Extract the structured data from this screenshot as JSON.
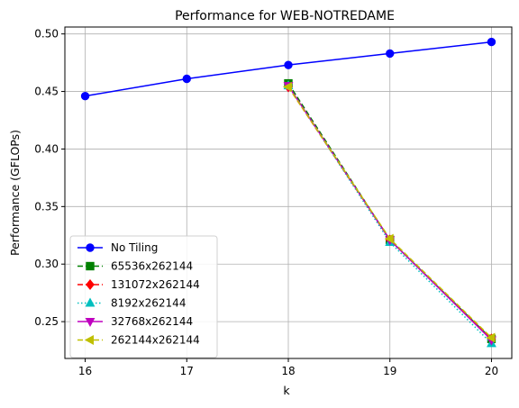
{
  "chart_data": {
    "type": "line",
    "title": "Performance for WEB-NOTREDAME",
    "xlabel": "k",
    "ylabel": "Performance (GFLOPs)",
    "xlim": [
      15.8,
      20.2
    ],
    "ylim": [
      0.218,
      0.506
    ],
    "xticks": [
      16,
      17,
      18,
      19,
      20
    ],
    "yticks": [
      0.25,
      0.3,
      0.35,
      0.4,
      0.45,
      0.5
    ],
    "ytick_labels": [
      "0.25",
      "0.30",
      "0.35",
      "0.40",
      "0.45",
      "0.50"
    ],
    "grid": true,
    "legend_placement": "lower-left",
    "series": [
      {
        "name": "No Tiling",
        "x": [
          16,
          17,
          18,
          19,
          20
        ],
        "y": [
          0.446,
          0.461,
          0.473,
          0.483,
          0.493
        ],
        "color": "#0000ff",
        "marker": "circle",
        "dash": "solid"
      },
      {
        "name": "65536x262144",
        "x": [
          18,
          19,
          20
        ],
        "y": [
          0.457,
          0.321,
          0.235
        ],
        "color": "#008000",
        "marker": "square",
        "dash": "dashed"
      },
      {
        "name": "131072x262144",
        "x": [
          18,
          19,
          20
        ],
        "y": [
          0.454,
          0.321,
          0.235
        ],
        "color": "#ff0000",
        "marker": "diamond",
        "dash": "dashed"
      },
      {
        "name": "8192x262144",
        "x": [
          18,
          19,
          20
        ],
        "y": [
          0.455,
          0.319,
          0.231
        ],
        "color": "#00bfbf",
        "marker": "triangle-up",
        "dash": "dotted"
      },
      {
        "name": "32768x262144",
        "x": [
          18,
          19,
          20
        ],
        "y": [
          0.455,
          0.321,
          0.234
        ],
        "color": "#bf00bf",
        "marker": "triangle-down",
        "dash": "solid"
      },
      {
        "name": "262144x262144",
        "x": [
          18,
          19,
          20
        ],
        "y": [
          0.454,
          0.322,
          0.236
        ],
        "color": "#bfbf00",
        "marker": "triangle-left",
        "dash": "dashed"
      }
    ]
  }
}
